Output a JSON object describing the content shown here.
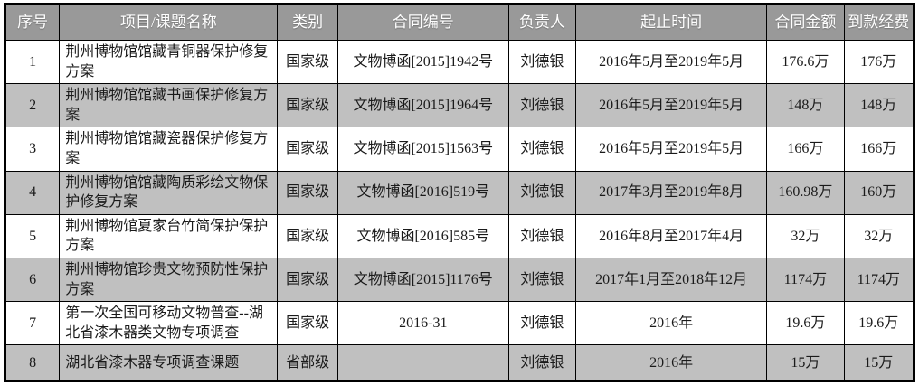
{
  "table": {
    "columns": {
      "index": "序号",
      "name": "项目/课题名称",
      "category": "类别",
      "contract": "合同编号",
      "leader": "负责人",
      "period": "起止时间",
      "amount": "合同金额",
      "fund": "到款经费"
    },
    "rows": [
      [
        "1",
        "荆州博物馆馆藏青铜器保护修复方案",
        "国家级",
        "文物博函[2015]1942号",
        "刘德银",
        "2016年5月至2019年5月",
        "176.6万",
        "176万"
      ],
      [
        "2",
        "荆州博物馆馆藏书画保护修复方案",
        "国家级",
        "文物博函[2015]1964号",
        "刘德银",
        "2016年5月至2019年5月",
        "148万",
        "148万"
      ],
      [
        "3",
        "荆州博物馆馆藏瓷器保护修复方案",
        "国家级",
        "文物博函[2015]1563号",
        "刘德银",
        "2016年5月至2019年5月",
        "166万",
        "166万"
      ],
      [
        "4",
        "荆州博物馆馆藏陶质彩绘文物保护修复方案",
        "国家级",
        "文物博函[2016]519号",
        "刘德银",
        "2017年3月至2019年8月",
        "160.98万",
        "160万"
      ],
      [
        "5",
        "荆州博物馆夏家台竹简保护保护方案",
        "国家级",
        "文物博函[2016]585号",
        "刘德银",
        "2016年8月至2017年4月",
        "32万",
        "32万"
      ],
      [
        "6",
        "荆州博物馆珍贵文物预防性保护方案",
        "国家级",
        "文物博函[2015]1176号",
        "刘德银",
        "2017年1月至2018年12月",
        "1174万",
        "1174万"
      ],
      [
        "7",
        "第一次全国可移动文物普查--湖北省漆木器类文物专项调查",
        "国家级",
        "2016-31",
        "刘德银",
        "2016年",
        "19.6万",
        "19.6万"
      ],
      [
        "8",
        "湖北省漆木器专项调查课题",
        "省部级",
        "",
        "刘德银",
        "2016年",
        "15万",
        "15万"
      ]
    ],
    "colors": {
      "header_bg": "#999999",
      "header_text": "#ffffff",
      "row_alt_bg": "#c0c0c0",
      "row_bg": "#ffffff",
      "body_text": "#1a1a1a",
      "grid": "#000000"
    }
  }
}
